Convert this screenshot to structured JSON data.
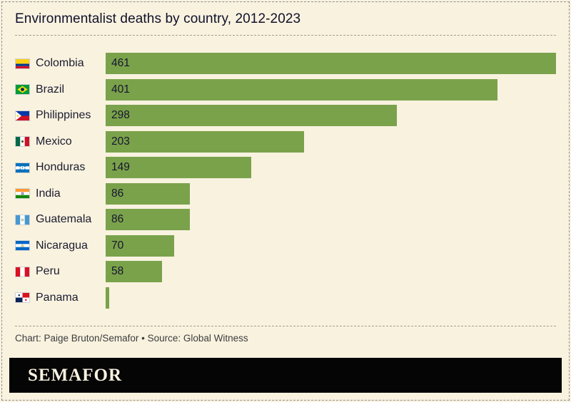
{
  "page": {
    "title": "Environmentalist deaths by country, 2012-2023",
    "credit": "Chart: Paige Bruton/Semafor • Source: Global Witness",
    "logo_text": "SEMAFOR"
  },
  "colors": {
    "background": "#f8f2df",
    "bar": "#7aa24b",
    "text": "#15152e",
    "logo_bg": "#000000",
    "logo_text_color": "#f8f2df"
  },
  "chart_data": {
    "type": "bar",
    "orientation": "horizontal",
    "title": "Environmentalist deaths by country, 2012-2023",
    "categories": [
      "Colombia",
      "Brazil",
      "Philippines",
      "Mexico",
      "Honduras",
      "India",
      "Guatemala",
      "Nicaragua",
      "Peru",
      "Panama"
    ],
    "values": [
      461,
      401,
      298,
      203,
      149,
      86,
      86,
      70,
      58,
      4
    ],
    "value_labels": [
      "461",
      "401",
      "298",
      "203",
      "149",
      "86",
      "86",
      "70",
      "58",
      ""
    ],
    "flag_icons": [
      "colombia-flag-icon",
      "brazil-flag-icon",
      "philippines-flag-icon",
      "mexico-flag-icon",
      "honduras-flag-icon",
      "india-flag-icon",
      "guatemala-flag-icon",
      "nicaragua-flag-icon",
      "peru-flag-icon",
      "panama-flag-icon"
    ],
    "xlim": [
      0,
      461
    ],
    "grid": false,
    "legend": false,
    "source": "Global Witness",
    "credit": "Paige Bruton/Semafor"
  }
}
